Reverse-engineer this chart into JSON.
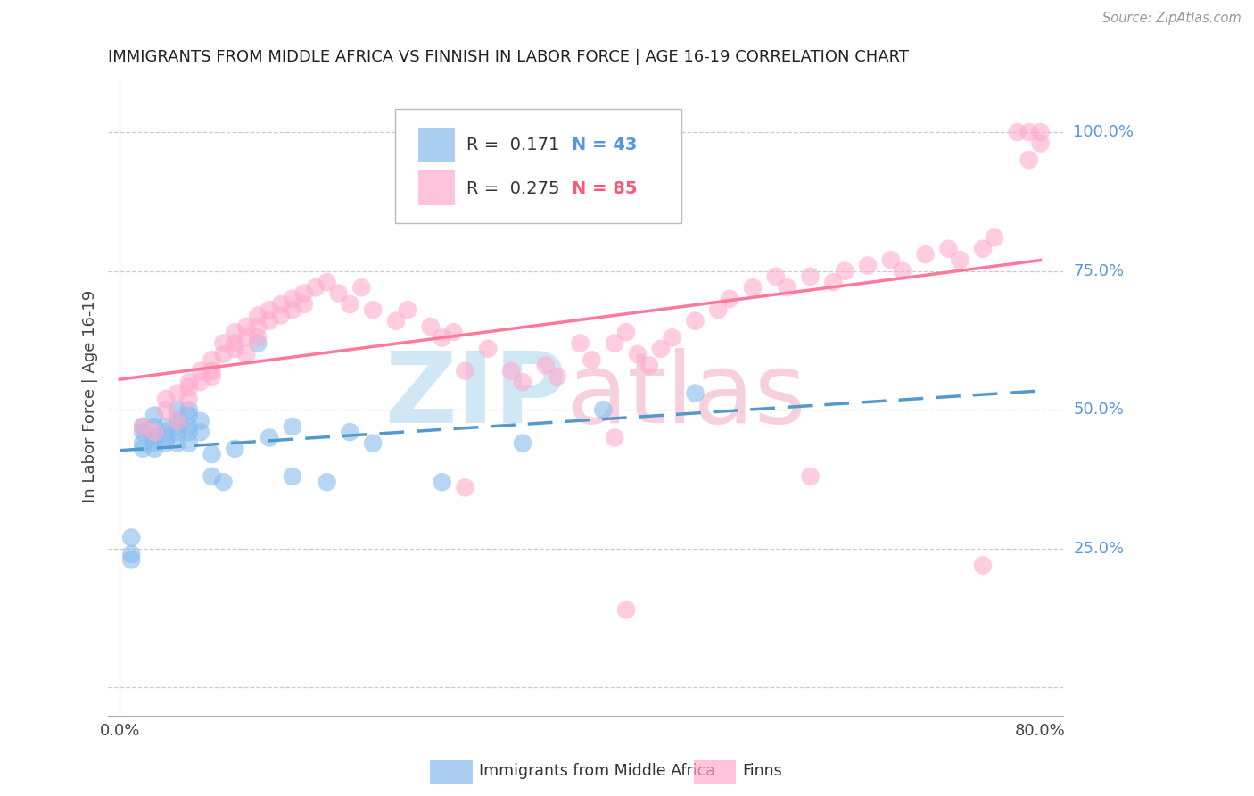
{
  "title": "IMMIGRANTS FROM MIDDLE AFRICA VS FINNISH IN LABOR FORCE | AGE 16-19 CORRELATION CHART",
  "source": "Source: ZipAtlas.com",
  "ylabel": "In Labor Force | Age 16-19",
  "ylabel_ticks": [
    "100.0%",
    "75.0%",
    "50.0%",
    "25.0%"
  ],
  "ylabel_tick_values": [
    1.0,
    0.75,
    0.5,
    0.25
  ],
  "xlim": [
    0.0,
    0.8
  ],
  "ylim": [
    -0.05,
    1.1
  ],
  "legend1_label": "Immigrants from Middle Africa",
  "legend2_label": "Finns",
  "r1": 0.171,
  "n1": 43,
  "r2": 0.275,
  "n2": 85,
  "color_blue": "#88BBEE",
  "color_pink": "#FFAACC",
  "color_blue_line": "#5599CC",
  "color_pink_line": "#FF7799",
  "color_blue_text": "#5599DD",
  "color_grid": "#cccccc",
  "title_color": "#222222",
  "source_color": "#999999",
  "blue_x": [
    0.01,
    0.01,
    0.01,
    0.02,
    0.02,
    0.02,
    0.02,
    0.03,
    0.03,
    0.03,
    0.03,
    0.03,
    0.04,
    0.04,
    0.04,
    0.04,
    0.05,
    0.05,
    0.05,
    0.05,
    0.05,
    0.06,
    0.06,
    0.06,
    0.06,
    0.06,
    0.07,
    0.07,
    0.08,
    0.08,
    0.09,
    0.1,
    0.12,
    0.13,
    0.15,
    0.15,
    0.18,
    0.2,
    0.22,
    0.28,
    0.35,
    0.42,
    0.5
  ],
  "blue_y": [
    0.23,
    0.24,
    0.27,
    0.43,
    0.44,
    0.46,
    0.47,
    0.43,
    0.44,
    0.45,
    0.47,
    0.49,
    0.44,
    0.45,
    0.46,
    0.47,
    0.44,
    0.46,
    0.47,
    0.48,
    0.5,
    0.44,
    0.46,
    0.47,
    0.49,
    0.5,
    0.46,
    0.48,
    0.38,
    0.42,
    0.37,
    0.43,
    0.62,
    0.45,
    0.38,
    0.47,
    0.37,
    0.46,
    0.44,
    0.37,
    0.44,
    0.5,
    0.53
  ],
  "pink_x": [
    0.02,
    0.03,
    0.04,
    0.04,
    0.05,
    0.05,
    0.06,
    0.06,
    0.06,
    0.07,
    0.07,
    0.08,
    0.08,
    0.08,
    0.09,
    0.09,
    0.1,
    0.1,
    0.1,
    0.11,
    0.11,
    0.11,
    0.12,
    0.12,
    0.12,
    0.13,
    0.13,
    0.14,
    0.14,
    0.15,
    0.15,
    0.16,
    0.16,
    0.17,
    0.18,
    0.19,
    0.2,
    0.21,
    0.22,
    0.24,
    0.25,
    0.27,
    0.28,
    0.29,
    0.3,
    0.32,
    0.34,
    0.35,
    0.37,
    0.38,
    0.4,
    0.41,
    0.43,
    0.44,
    0.45,
    0.46,
    0.47,
    0.48,
    0.5,
    0.52,
    0.53,
    0.55,
    0.57,
    0.58,
    0.6,
    0.62,
    0.63,
    0.65,
    0.67,
    0.68,
    0.7,
    0.72,
    0.73,
    0.75,
    0.76,
    0.78,
    0.79,
    0.79,
    0.8,
    0.8,
    0.43,
    0.44,
    0.3,
    0.6,
    0.75
  ],
  "pink_y": [
    0.47,
    0.46,
    0.5,
    0.52,
    0.53,
    0.48,
    0.52,
    0.54,
    0.55,
    0.55,
    0.57,
    0.57,
    0.59,
    0.56,
    0.6,
    0.62,
    0.62,
    0.64,
    0.61,
    0.65,
    0.63,
    0.6,
    0.65,
    0.67,
    0.63,
    0.68,
    0.66,
    0.69,
    0.67,
    0.7,
    0.68,
    0.71,
    0.69,
    0.72,
    0.73,
    0.71,
    0.69,
    0.72,
    0.68,
    0.66,
    0.68,
    0.65,
    0.63,
    0.64,
    0.57,
    0.61,
    0.57,
    0.55,
    0.58,
    0.56,
    0.62,
    0.59,
    0.62,
    0.64,
    0.6,
    0.58,
    0.61,
    0.63,
    0.66,
    0.68,
    0.7,
    0.72,
    0.74,
    0.72,
    0.74,
    0.73,
    0.75,
    0.76,
    0.77,
    0.75,
    0.78,
    0.79,
    0.77,
    0.79,
    0.81,
    1.0,
    1.0,
    0.95,
    1.0,
    0.98,
    0.45,
    0.14,
    0.36,
    0.38,
    0.22
  ]
}
